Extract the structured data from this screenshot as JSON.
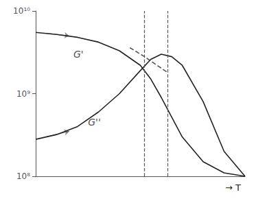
{
  "chart_data": {
    "type": "line",
    "xlabel": "→ T",
    "log": "y",
    "xlim": [
      0,
      10
    ],
    "ylim": [
      100000000.0,
      10000000000.0
    ],
    "yticks": [
      {
        "value": 100000000.0,
        "label": "10⁸"
      },
      {
        "value": 1000000000.0,
        "label": "10⁹"
      },
      {
        "value": 10000000000.0,
        "label": "10¹⁰"
      }
    ],
    "tick_labels": "y",
    "grid": false,
    "series": [
      {
        "x": [
          0,
          1,
          2,
          3,
          4,
          5,
          5.5,
          6,
          7,
          8,
          9,
          10
        ],
        "values": [
          5500000000.0,
          5200000000.0,
          4800000000.0,
          4200000000.0,
          3300000000.0,
          2200000000.0,
          1500000000.0,
          900000000.0,
          300000000.0,
          150000000.0,
          110000000.0,
          100000000.0
        ],
        "color": "#222222",
        "line_style": "solid"
      },
      {
        "x": [
          4.5,
          5.2,
          5.8,
          6.3
        ],
        "values": [
          3600000000.0,
          2800000000.0,
          2200000000.0,
          1800000000.0
        ],
        "color": "#555555",
        "line_style": "dashed"
      },
      {
        "x": [
          0,
          1,
          2,
          3,
          4,
          5,
          5.5,
          6,
          6.5,
          7,
          8,
          9,
          10
        ],
        "values": [
          280000000.0,
          320000000.0,
          400000000.0,
          600000000.0,
          1000000000.0,
          1900000000.0,
          2600000000.0,
          3000000000.0,
          2800000000.0,
          2200000000.0,
          800000000.0,
          200000000.0,
          100000000.0
        ],
        "color": "#222222",
        "line_style": "solid"
      }
    ],
    "vlines": [
      {
        "x": 5.2,
        "color": "#555555",
        "line_style": "dashed"
      },
      {
        "x": 6.3,
        "color": "#555555",
        "line_style": "dashed"
      }
    ],
    "annotations": [
      {
        "text": "G'",
        "x": 1.8,
        "y": 3000000000.0,
        "color": "#222222"
      },
      {
        "text": "G''",
        "x": 2.5,
        "y": 450000000.0,
        "color": "#222222"
      }
    ],
    "arrows": [
      {
        "from": [
          0.5,
          5400000000.0
        ],
        "to": [
          1.6,
          5000000000.0
        ],
        "color": "#222222"
      },
      {
        "from": [
          0.5,
          300000000.0
        ],
        "to": [
          1.6,
          350000000.0
        ],
        "color": "#222222"
      }
    ]
  }
}
